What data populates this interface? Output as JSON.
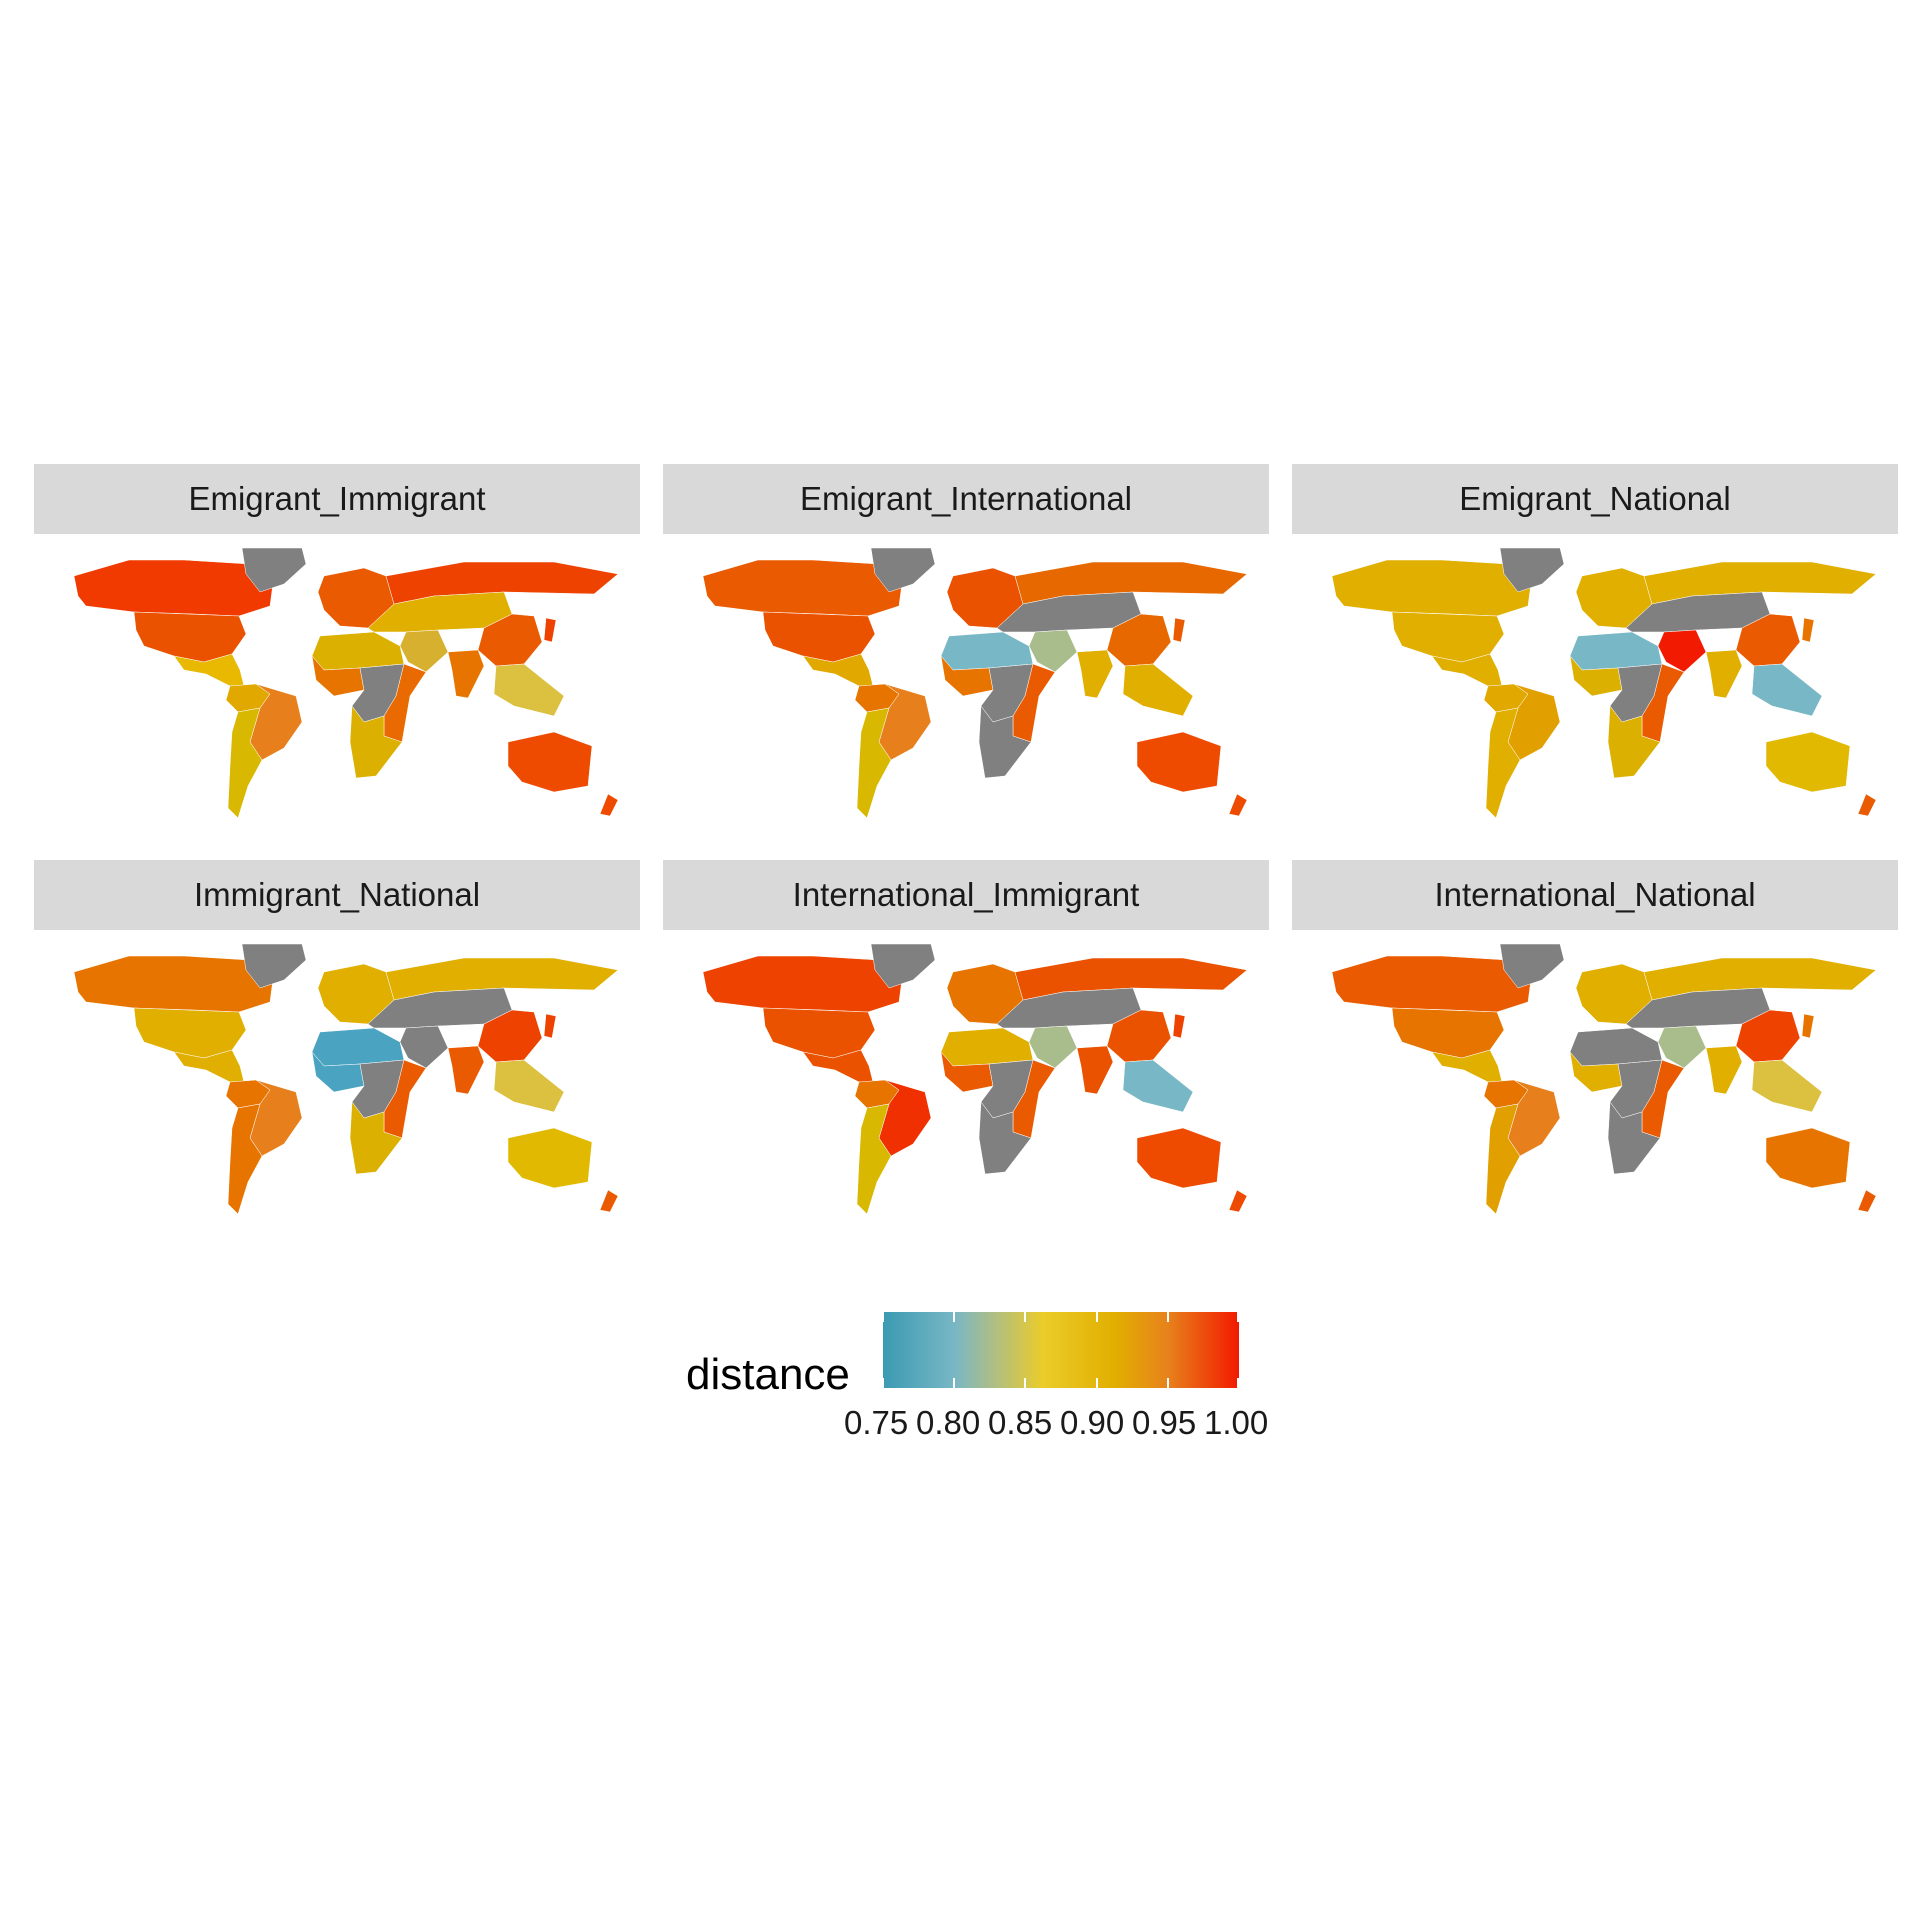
{
  "facets": [
    {
      "label": "Emigrant_Immigrant",
      "colors": {
        "na": "#f03a00",
        "us": "#ea5200",
        "greenland": "#808080",
        "ca": "#e8b900",
        "sa_n": "#e1a800",
        "brazil": "#e7801c",
        "sa_s": "#d8b800",
        "europe": "#ea5a00",
        "russia": "#ee4300",
        "asia_c": "#e1af00",
        "china": "#ea5a00",
        "india": "#e87400",
        "sea": "#dcc040",
        "africa_n": "#dcb000",
        "africa_w": "#e87400",
        "africa_c": "#808080",
        "africa_e": "#e86a00",
        "africa_s": "#dcb000",
        "mideast": "#d8b030",
        "australia": "#ee4a00",
        "nz": "#ee4a00",
        "japan": "#ee4300"
      }
    },
    {
      "label": "Emigrant_International",
      "colors": {
        "na": "#ea5a00",
        "us": "#ea5200",
        "greenland": "#808080",
        "ca": "#e1a800",
        "sa_n": "#e87400",
        "brazil": "#e7801c",
        "sa_s": "#d8b800",
        "europe": "#ea5200",
        "russia": "#e86800",
        "asia_c": "#808080",
        "china": "#e86800",
        "india": "#e1af00",
        "sea": "#e1af00",
        "africa_n": "#78b7c5",
        "africa_w": "#e87400",
        "africa_c": "#808080",
        "africa_e": "#ea5a00",
        "africa_s": "#808080",
        "mideast": "#a9bd8c",
        "australia": "#ee4a00",
        "nz": "#ee4a00",
        "japan": "#ea5a00"
      }
    },
    {
      "label": "Emigrant_National",
      "colors": {
        "na": "#e1af00",
        "us": "#e1af00",
        "greenland": "#808080",
        "ca": "#e1af00",
        "sa_n": "#e1a800",
        "brazil": "#e1a000",
        "sa_s": "#e1af00",
        "europe": "#e1af00",
        "russia": "#e1af00",
        "asia_c": "#808080",
        "china": "#ea5a00",
        "india": "#e1af00",
        "sea": "#78b7c5",
        "africa_n": "#78b7c5",
        "africa_w": "#dcb000",
        "africa_c": "#808080",
        "africa_e": "#ea5a00",
        "africa_s": "#dcb000",
        "mideast": "#f21a00",
        "australia": "#e1b900",
        "nz": "#ea5a00",
        "japan": "#e87400"
      }
    },
    {
      "label": "Immigrant_National",
      "colors": {
        "na": "#e87400",
        "us": "#e1af00",
        "greenland": "#808080",
        "ca": "#e1af00",
        "sa_n": "#e87400",
        "brazil": "#e7801c",
        "sa_s": "#e87400",
        "europe": "#e1af00",
        "russia": "#e1af00",
        "asia_c": "#808080",
        "china": "#ee4300",
        "india": "#ea5a00",
        "sea": "#dcc040",
        "africa_n": "#4aa3c0",
        "africa_w": "#4aa3c0",
        "africa_c": "#808080",
        "africa_e": "#ea5a00",
        "africa_s": "#dcb000",
        "mideast": "#808080",
        "australia": "#e1b900",
        "nz": "#ea5a00",
        "japan": "#ee4300"
      }
    },
    {
      "label": "International_Immigrant",
      "colors": {
        "na": "#ee4300",
        "us": "#ea5200",
        "greenland": "#808080",
        "ca": "#ea5200",
        "sa_n": "#e87400",
        "brazil": "#f03000",
        "sa_s": "#d8b800",
        "europe": "#e87400",
        "russia": "#ea5200",
        "asia_c": "#808080",
        "china": "#ea5200",
        "india": "#ea5200",
        "sea": "#78b7c5",
        "africa_n": "#e1af00",
        "africa_w": "#ea5a00",
        "africa_c": "#808080",
        "africa_e": "#ea5a00",
        "africa_s": "#808080",
        "mideast": "#a9bd8c",
        "australia": "#ee4a00",
        "nz": "#ee4a00",
        "japan": "#ee4300"
      }
    },
    {
      "label": "International_National",
      "colors": {
        "na": "#ea5a00",
        "us": "#e87400",
        "greenland": "#808080",
        "ca": "#e1af00",
        "sa_n": "#e87400",
        "brazil": "#e7801c",
        "sa_s": "#e1a000",
        "europe": "#e1af00",
        "russia": "#e1af00",
        "asia_c": "#808080",
        "china": "#ee4300",
        "india": "#e1af00",
        "sea": "#dcc040",
        "africa_n": "#808080",
        "africa_w": "#e1af00",
        "africa_c": "#808080",
        "africa_e": "#ea5a00",
        "africa_s": "#808080",
        "mideast": "#a9bd8c",
        "australia": "#e87400",
        "nz": "#ea5a00",
        "japan": "#e87400"
      }
    }
  ],
  "legend": {
    "title": "distance",
    "ticks": [
      "0.75",
      "0.80",
      "0.85",
      "0.90",
      "0.95",
      "1.00"
    ],
    "domain": [
      0.75,
      1.0
    ],
    "palette": [
      "#3b9ab2",
      "#78b7c5",
      "#ebcc2a",
      "#e1af00",
      "#f21a00"
    ],
    "na_color": "#808080"
  }
}
